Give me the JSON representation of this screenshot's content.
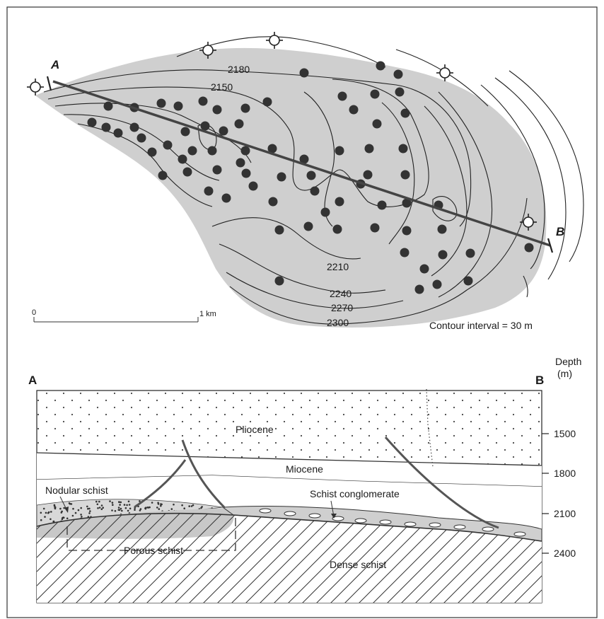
{
  "map": {
    "point_a": "A",
    "point_b": "B",
    "contours": [
      {
        "id": "c2150",
        "label": "2150"
      },
      {
        "id": "c2180",
        "label": "2180"
      },
      {
        "id": "c2210",
        "label": "2210"
      },
      {
        "id": "c2240",
        "label": "2240"
      },
      {
        "id": "c2270",
        "label": "2270"
      },
      {
        "id": "c2300",
        "label": "2300"
      }
    ],
    "scale": {
      "start": "0",
      "end": "1 km"
    },
    "contour_interval": "Contour interval = 30 m",
    "well_counts": {
      "producing": 72,
      "dry": 5
    }
  },
  "section": {
    "point_a": "A",
    "point_b": "B",
    "depth_title": "Depth",
    "depth_unit": "(m)",
    "depth_ticks": [
      "1500",
      "1800",
      "2100",
      "2400"
    ],
    "labels": {
      "pliocene": "Pliocene",
      "miocene": "Miocene",
      "nodular_schist": "Nodular schist",
      "schist_conglomerate": "Schist conglomerate",
      "porous_schist": "Porous schist",
      "dense_schist": "Dense schist"
    }
  },
  "colors": {
    "reservoir_fill": "#cfcfcf",
    "line": "#222222",
    "fault": "#555555",
    "well": "#333333"
  }
}
